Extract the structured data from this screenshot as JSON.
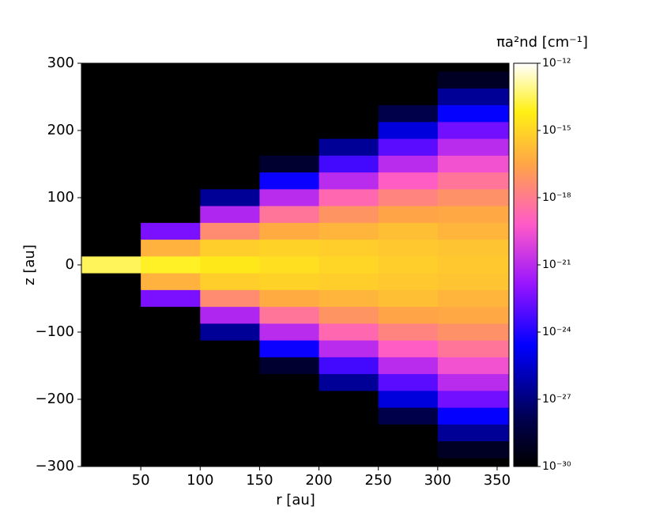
{
  "chart_data": {
    "type": "heatmap",
    "xlabel": "r [au]",
    "ylabel": "z [au]",
    "colorbar_label": "πa²nd [cm⁻¹]",
    "x": [
      25,
      75,
      125,
      175,
      225,
      275,
      325
    ],
    "y": [
      300,
      275,
      250,
      225,
      200,
      175,
      150,
      125,
      100,
      75,
      50,
      25,
      0,
      -25,
      -50,
      -75,
      -100,
      -125,
      -150,
      -175,
      -200,
      -225,
      -250,
      -275,
      -300
    ],
    "values": [
      [
        1e-33,
        1e-33,
        1e-33,
        1e-33,
        1e-33,
        1e-33,
        3e-32
      ],
      [
        1e-33,
        1e-33,
        1e-33,
        1e-33,
        1e-33,
        1e-33,
        1e-29
      ],
      [
        1e-33,
        1e-33,
        1e-33,
        1e-33,
        1e-33,
        1e-31,
        3e-27
      ],
      [
        1e-33,
        1e-33,
        1e-33,
        1e-33,
        1e-33,
        1e-28,
        3e-25
      ],
      [
        1e-33,
        1e-33,
        1e-33,
        1e-33,
        1e-30,
        6e-26,
        3e-23
      ],
      [
        1e-33,
        1e-33,
        1e-33,
        1e-33,
        3e-27,
        1e-23,
        1e-21
      ],
      [
        1e-33,
        1e-33,
        1e-33,
        2e-29,
        4e-24,
        1e-21,
        3e-20
      ],
      [
        1e-33,
        1e-33,
        1e-33,
        4e-25,
        1e-21,
        8e-20,
        6e-19
      ],
      [
        1e-33,
        1e-33,
        3e-27,
        1e-21,
        2e-19,
        2e-18,
        6e-18
      ],
      [
        1e-33,
        1e-33,
        6e-22,
        6e-19,
        8e-18,
        3e-17,
        4e-17
      ],
      [
        1e-33,
        4e-23,
        4e-18,
        5e-17,
        1e-16,
        2e-16,
        1e-16
      ],
      [
        3e-33,
        8e-17,
        6e-16,
        8e-16,
        6e-16,
        4e-16,
        3e-16
      ],
      [
        3e-14,
        1e-14,
        4e-15,
        2e-15,
        1e-15,
        6e-16,
        4e-16
      ],
      [
        3e-33,
        8e-17,
        6e-16,
        8e-16,
        6e-16,
        4e-16,
        3e-16
      ],
      [
        1e-33,
        4e-23,
        4e-18,
        5e-17,
        1e-16,
        2e-16,
        1e-16
      ],
      [
        1e-33,
        1e-33,
        6e-22,
        6e-19,
        8e-18,
        3e-17,
        4e-17
      ],
      [
        1e-33,
        1e-33,
        3e-27,
        1e-21,
        2e-19,
        2e-18,
        6e-18
      ],
      [
        1e-33,
        1e-33,
        1e-33,
        4e-25,
        1e-21,
        8e-20,
        6e-19
      ],
      [
        1e-33,
        1e-33,
        1e-33,
        2e-29,
        4e-24,
        1e-21,
        3e-20
      ],
      [
        1e-33,
        1e-33,
        1e-33,
        1e-33,
        3e-27,
        1e-23,
        1e-21
      ],
      [
        1e-33,
        1e-33,
        1e-33,
        1e-33,
        1e-30,
        6e-26,
        3e-23
      ],
      [
        1e-33,
        1e-33,
        1e-33,
        1e-33,
        1e-33,
        1e-28,
        3e-25
      ],
      [
        1e-33,
        1e-33,
        1e-33,
        1e-33,
        1e-33,
        1e-31,
        3e-27
      ],
      [
        1e-33,
        1e-33,
        1e-33,
        1e-33,
        1e-33,
        1e-33,
        1e-29
      ],
      [
        1e-33,
        1e-33,
        1e-33,
        1e-33,
        1e-33,
        1e-33,
        3e-32
      ]
    ],
    "xlim": [
      0,
      360
    ],
    "ylim": [
      -300,
      300
    ],
    "xticks": [
      50,
      100,
      150,
      200,
      250,
      300,
      350
    ],
    "yticks": [
      {
        "value": -300,
        "label": "−300"
      },
      {
        "value": -200,
        "label": "−200"
      },
      {
        "value": -100,
        "label": "−100"
      },
      0,
      100,
      200,
      300
    ],
    "clim": [
      1e-30,
      1e-12
    ],
    "colorbar_scale": "log",
    "cticks": [
      {
        "value": 1e-30,
        "label": "10⁻³⁰"
      },
      {
        "value": 1e-27,
        "label": "10⁻²⁷"
      },
      {
        "value": 1e-24,
        "label": "10⁻²⁴"
      },
      {
        "value": 1e-21,
        "label": "10⁻²¹"
      },
      {
        "value": 1e-18,
        "label": "10⁻¹⁸"
      },
      {
        "value": 1e-15,
        "label": "10⁻¹⁵"
      },
      {
        "value": 1e-12,
        "label": "10⁻¹²"
      }
    ]
  }
}
